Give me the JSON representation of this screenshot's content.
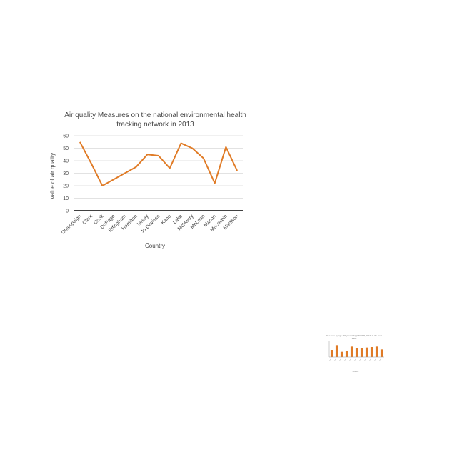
{
  "chart_data": [
    {
      "type": "line",
      "title": "Air quality Measures on the national environmental health tracking network in 2013",
      "xlabel": "Country",
      "ylabel": "Value of air quality",
      "categories": [
        "Champaign",
        "Clark",
        "Cook",
        "DuPage",
        "Effingham",
        "Hamilton",
        "Jersey",
        "Jo Daviess",
        "Kane",
        "Lake",
        "McHenry",
        "McLean",
        "Macon",
        "Macoupin",
        "Madison"
      ],
      "series": [
        {
          "values": [
            55,
            38,
            20,
            25,
            30,
            35,
            45,
            44,
            34,
            54,
            50,
            42,
            22,
            51,
            32
          ]
        }
      ],
      "ylim": [
        0,
        60
      ],
      "yticks": [
        0,
        10,
        20,
        30,
        40,
        50,
        60
      ],
      "color": "#E07B26",
      "grid": true,
      "legend": "none"
    },
    {
      "type": "bar",
      "title": "Sex ratio by age (90 year olds) (UNWPP, 2017) in the year 1995",
      "xlabel": "Country",
      "ylabel": "",
      "categories": [
        "A",
        "B",
        "C",
        "D",
        "E",
        "F",
        "G",
        "H",
        "I",
        "J",
        "K"
      ],
      "values": [
        30,
        50,
        22,
        24,
        44,
        36,
        38,
        40,
        42,
        44,
        32
      ],
      "ylim": [
        0,
        60
      ],
      "color": "#E07B26",
      "grid": false,
      "legend": "none"
    }
  ]
}
